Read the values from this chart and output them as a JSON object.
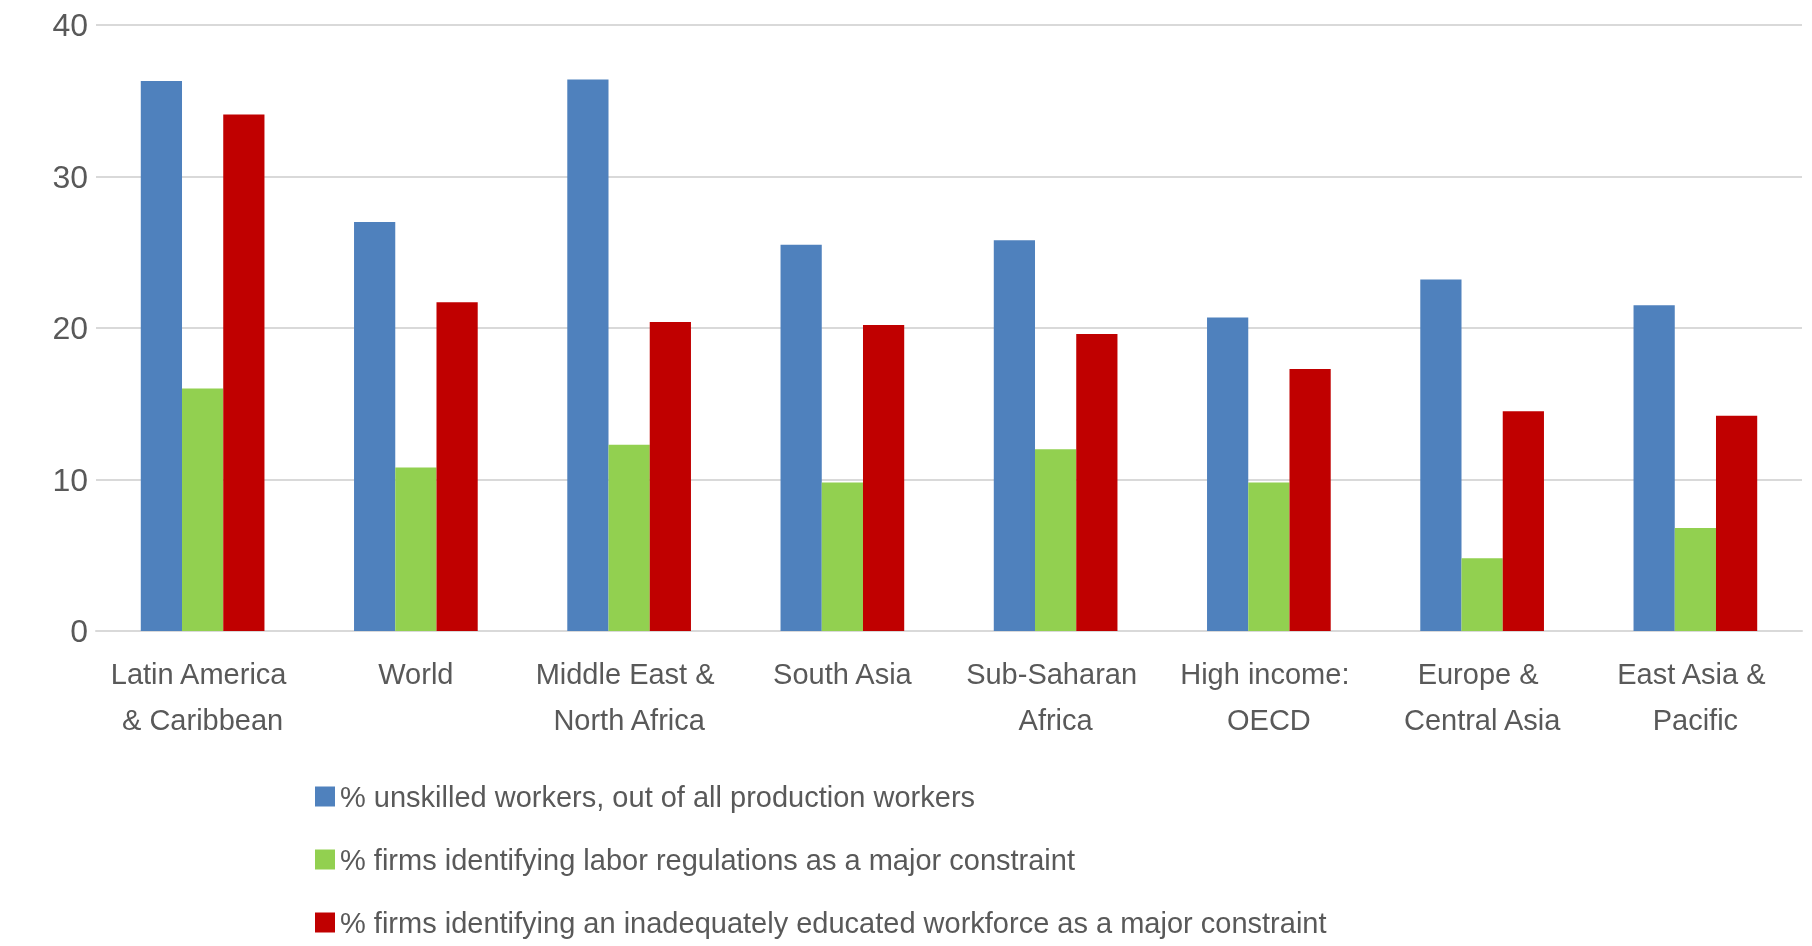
{
  "chart_data": {
    "type": "bar",
    "categories": [
      "Latin America & Caribbean",
      "World",
      "Middle East & North Africa",
      "South Asia",
      "Sub-Saharan Africa",
      "High income: OECD",
      "Europe & Central Asia",
      "East Asia & Pacific"
    ],
    "series": [
      {
        "name": "% unskilled workers, out of all production workers",
        "color": "#4f81bd",
        "values": [
          36.3,
          27.0,
          36.4,
          25.5,
          25.8,
          20.7,
          23.2,
          21.5
        ]
      },
      {
        "name": "% firms identifying labor regulations as a major constraint",
        "color": "#92d050",
        "values": [
          16.0,
          10.8,
          12.3,
          9.8,
          12.0,
          9.8,
          4.8,
          6.8
        ]
      },
      {
        "name": "% firms identifying an inadequately educated workforce as a major constraint",
        "color": "#c00000",
        "values": [
          34.1,
          21.7,
          20.4,
          20.2,
          19.6,
          17.3,
          14.5,
          14.2
        ]
      }
    ],
    "ylim": [
      0,
      40
    ],
    "yticks": [
      0,
      10,
      20,
      30,
      40
    ],
    "grid": "y",
    "legend": "bottom"
  }
}
